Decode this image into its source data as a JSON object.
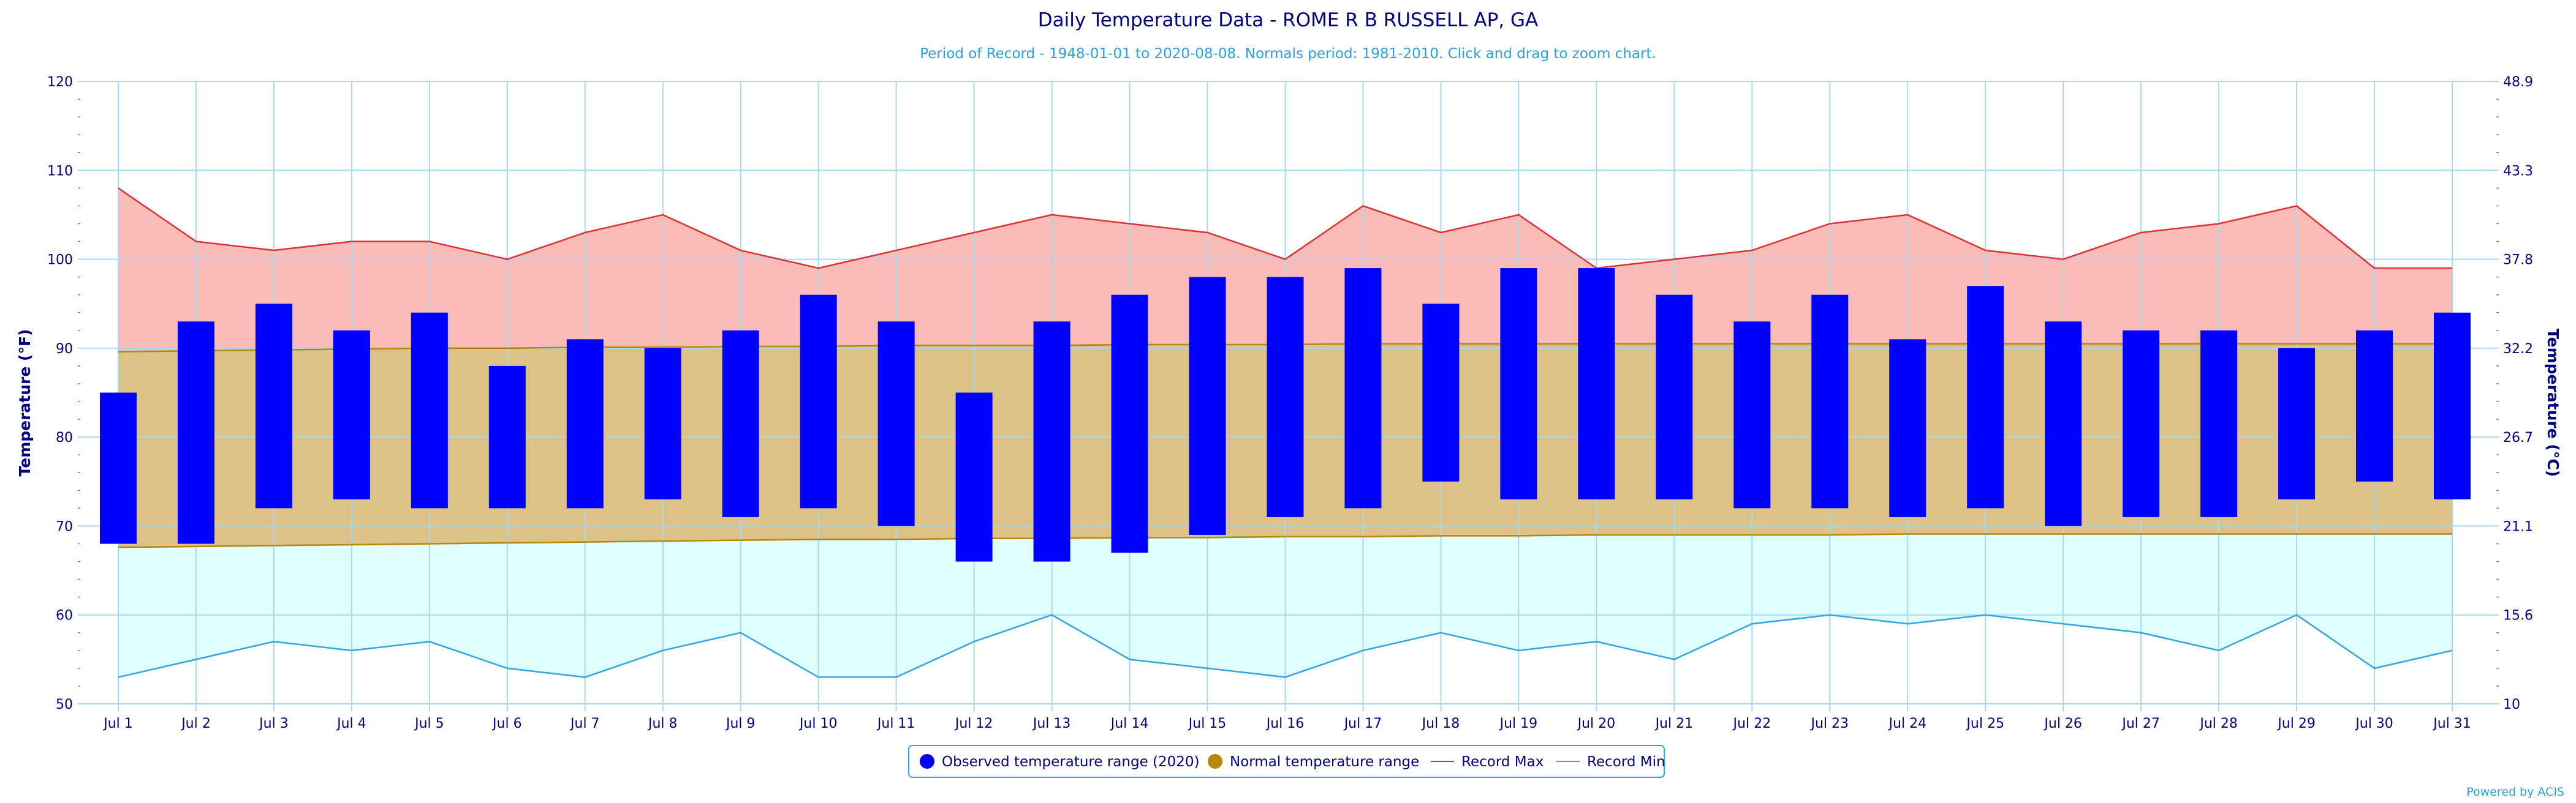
{
  "chart_data": {
    "type": "bar",
    "title": "Daily Temperature Data - ROME R B RUSSELL AP, GA",
    "subtitle": "Period of Record - 1948-01-01 to 2020-08-08. Normals period: 1981-2010. Click and drag to zoom chart.",
    "ylabel": "Temperature (°F)",
    "y2label": "Temperature (°C)",
    "ylim": [
      50,
      120
    ],
    "yticks": [
      50,
      60,
      70,
      80,
      90,
      100,
      110,
      120
    ],
    "y2ticks": [
      "10",
      "15.6",
      "21.1",
      "26.7",
      "32.2",
      "37.8",
      "43.3",
      "48.9"
    ],
    "categories": [
      "Jul 1",
      "Jul 2",
      "Jul 3",
      "Jul 4",
      "Jul 5",
      "Jul 6",
      "Jul 7",
      "Jul 8",
      "Jul 9",
      "Jul 10",
      "Jul 11",
      "Jul 12",
      "Jul 13",
      "Jul 14",
      "Jul 15",
      "Jul 16",
      "Jul 17",
      "Jul 18",
      "Jul 19",
      "Jul 20",
      "Jul 21",
      "Jul 22",
      "Jul 23",
      "Jul 24",
      "Jul 25",
      "Jul 26",
      "Jul 27",
      "Jul 28",
      "Jul 29",
      "Jul 30",
      "Jul 31"
    ],
    "series": [
      {
        "name": "Observed temperature range (2020)",
        "color": "#0000ff",
        "high": [
          85,
          93,
          95,
          92,
          94,
          88,
          91,
          90,
          92,
          96,
          93,
          85,
          93,
          96,
          98,
          98,
          99,
          95,
          99,
          99,
          96,
          93,
          96,
          91,
          97,
          93,
          92,
          92,
          90,
          92,
          94
        ],
        "low": [
          68,
          68,
          72,
          73,
          72,
          72,
          72,
          73,
          71,
          72,
          70,
          66,
          66,
          67,
          69,
          71,
          72,
          75,
          73,
          73,
          73,
          72,
          72,
          71,
          72,
          70,
          71,
          71,
          73,
          75,
          73
        ]
      },
      {
        "name": "Normal temperature range",
        "color": "#b8860b",
        "high": [
          89.6,
          89.7,
          89.8,
          89.9,
          90.0,
          90.0,
          90.1,
          90.1,
          90.2,
          90.2,
          90.3,
          90.3,
          90.3,
          90.4,
          90.4,
          90.4,
          90.5,
          90.5,
          90.5,
          90.5,
          90.5,
          90.5,
          90.5,
          90.5,
          90.5,
          90.5,
          90.5,
          90.5,
          90.5,
          90.5,
          90.5
        ],
        "low": [
          67.6,
          67.7,
          67.8,
          67.9,
          68.0,
          68.1,
          68.2,
          68.3,
          68.4,
          68.5,
          68.5,
          68.6,
          68.6,
          68.7,
          68.7,
          68.8,
          68.8,
          68.9,
          68.9,
          69.0,
          69.0,
          69.0,
          69.0,
          69.1,
          69.1,
          69.1,
          69.1,
          69.1,
          69.1,
          69.1,
          69.1
        ]
      },
      {
        "name": "Record Max",
        "color": "#e03030",
        "values": [
          108,
          102,
          101,
          102,
          102,
          100,
          103,
          105,
          101,
          99,
          101,
          103,
          105,
          104,
          103,
          100,
          106,
          103,
          105,
          99,
          100,
          101,
          104,
          105,
          101,
          100,
          103,
          104,
          106,
          99,
          99
        ]
      },
      {
        "name": "Record Min",
        "color": "#2fa6e0",
        "values": [
          53,
          55,
          57,
          56,
          57,
          54,
          53,
          56,
          58,
          53,
          53,
          57,
          60,
          55,
          54,
          53,
          56,
          58,
          56,
          57,
          55,
          59,
          60,
          59,
          60,
          59,
          58,
          56,
          60,
          54,
          56
        ]
      }
    ],
    "colors": {
      "record_band": "#f9bbb5",
      "normal_band": "#dcc287",
      "record_min_band": "#e0ffff",
      "gridline": "#a8d8f0",
      "axis_text": "#000080"
    },
    "legend_position": "bottom-center",
    "grid": true
  },
  "credit": "Powered by ACIS"
}
